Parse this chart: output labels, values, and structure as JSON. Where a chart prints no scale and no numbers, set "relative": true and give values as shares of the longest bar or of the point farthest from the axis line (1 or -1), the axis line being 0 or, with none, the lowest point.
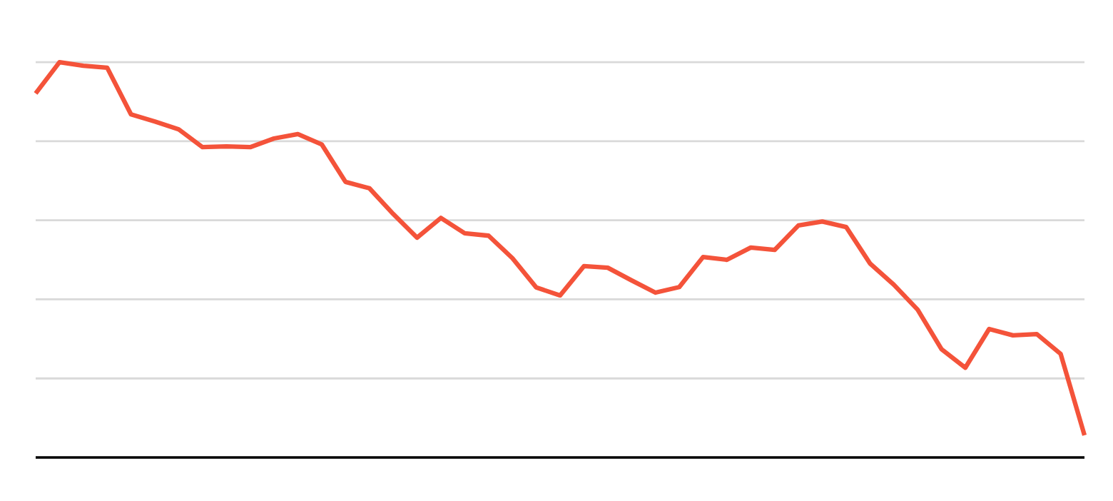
{
  "chart_data": {
    "type": "line",
    "relative": true,
    "grid": "y",
    "marker": "none",
    "line_style": "solid",
    "color": "#f4533a",
    "categories": [
      null,
      null,
      null,
      null,
      null,
      null,
      null,
      null,
      null,
      null,
      null,
      null,
      null,
      null,
      null,
      null,
      null,
      null,
      null,
      null,
      null,
      null,
      null,
      null,
      null,
      null,
      null,
      null,
      null,
      null,
      null,
      null,
      null,
      null,
      null,
      null,
      null,
      null,
      null,
      null,
      null,
      null,
      null,
      null,
      null
    ],
    "values": [
      0.921,
      1,
      0.991,
      0.986,
      0.868,
      0.85,
      0.83,
      0.785,
      0.787,
      0.785,
      0.807,
      0.818,
      0.792,
      0.697,
      0.681,
      0.616,
      0.556,
      0.606,
      0.567,
      0.561,
      0.504,
      0.43,
      0.41,
      0.484,
      0.48,
      0.448,
      0.417,
      0.431,
      0.507,
      0.5,
      0.531,
      0.525,
      0.587,
      0.597,
      0.583,
      0.491,
      0.437,
      0.374,
      0.274,
      0.227,
      0.325,
      0.309,
      0.312,
      0.262,
      0.056
    ]
  }
}
